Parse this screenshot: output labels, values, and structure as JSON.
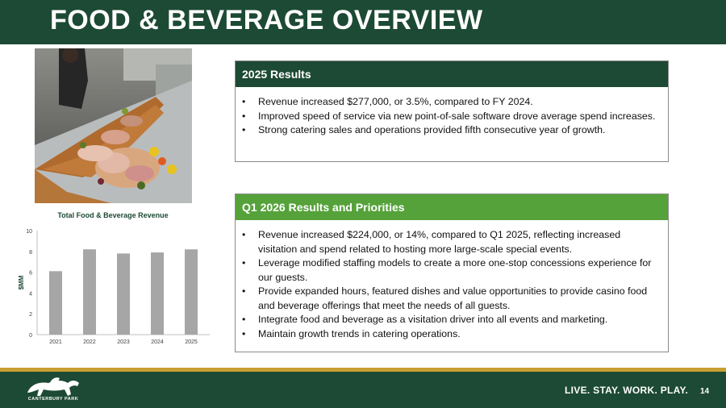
{
  "title": "FOOD & BEVERAGE OVERVIEW",
  "colors": {
    "brand_green": "#1d4a34",
    "accent_green": "#55a23a",
    "gold": "#c8a032",
    "bar_gray": "#a6a6a6"
  },
  "results_2025": {
    "heading": "2025 Results",
    "bullets": [
      "Revenue increased $277,000, or 3.5%, compared to FY 2024.",
      "Improved speed of service via new point-of-sale software drove average spend increases.",
      "Strong catering sales and operations provided fifth consecutive year of growth."
    ]
  },
  "q1_2026": {
    "heading": "Q1 2026 Results and Priorities",
    "bullets": [
      "Revenue increased $224,000, or 14%, compared to Q1 2025, reflecting increased visitation and spend related to hosting more large-scale special events.",
      "Leverage modified staffing models to create a more one-stop concessions experience for our guests.",
      "Provide expanded hours, featured dishes and value opportunities to provide casino food and beverage offerings that meet the needs of all guests.",
      "Integrate food and beverage as a visitation driver into all events and marketing.",
      "Maintain growth trends in catering operations."
    ]
  },
  "chart_data": {
    "type": "bar",
    "title": "Total Food & Beverage Revenue",
    "ylabel": "$MM",
    "xlabel": "",
    "categories": [
      "2021",
      "2022",
      "2023",
      "2024",
      "2025"
    ],
    "values": [
      6.1,
      8.2,
      7.8,
      7.9,
      8.2
    ],
    "ylim": [
      0,
      10
    ],
    "yticks": [
      "0",
      "2",
      "4",
      "6",
      "8",
      "10"
    ],
    "grid": false
  },
  "footer": {
    "tagline": "LIVE. STAY. WORK. PLAY.",
    "page_number": "14",
    "logo_text": "CANTERBURY PARK"
  }
}
